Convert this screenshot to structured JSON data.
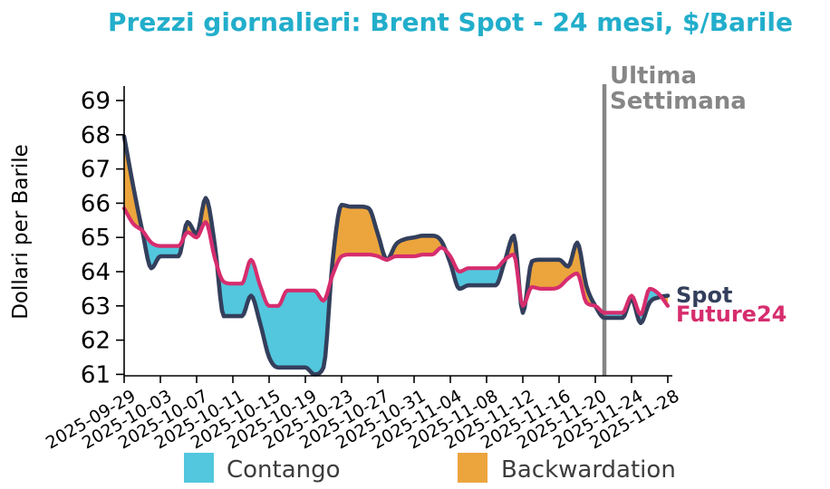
{
  "title": "Prezzi giornalieri: Brent Spot - 24 mesi, $/Barile",
  "ylabel": "Dollari per Barile",
  "annotation": {
    "line1": "Ultima",
    "line2": "Settimana"
  },
  "series_end_labels": {
    "spot": "Spot",
    "future": "Future24"
  },
  "legend": [
    {
      "label": "Contango",
      "color": "#52C7DE"
    },
    {
      "label": "Backwardation",
      "color": "#ECA53D"
    }
  ],
  "colors": {
    "title": "#22AECB",
    "spot": "#333F5C",
    "future": "#D62D6E",
    "contango": "#52C7DE",
    "backwardation": "#ECA53D",
    "annotation": "#868686",
    "vline": "#868686",
    "axis": "#000000",
    "legend_text": "#3D3D3D"
  },
  "chart_data": {
    "type": "line",
    "title": "Prezzi giornalieri: Brent Spot - 24 mesi, $/Barile",
    "xlabel": "",
    "ylabel": "Dollari per Barile",
    "ylim": [
      60.9,
      69.45
    ],
    "yticks": [
      61,
      62,
      63,
      64,
      65,
      66,
      67,
      68,
      69
    ],
    "xtick_labels": [
      "2025-09-29",
      "2025-10-03",
      "2025-10-07",
      "2025-10-11",
      "2025-10-15",
      "2025-10-19",
      "2025-10-23",
      "2025-10-27",
      "2025-10-31",
      "2025-11-04",
      "2025-11-08",
      "2025-11-12",
      "2025-11-16",
      "2025-11-20",
      "2025-11-24",
      "2025-11-28"
    ],
    "x_dates": [
      "2025-09-29",
      "2025-09-30",
      "2025-10-01",
      "2025-10-02",
      "2025-10-03",
      "2025-10-04",
      "2025-10-05",
      "2025-10-06",
      "2025-10-07",
      "2025-10-08",
      "2025-10-09",
      "2025-10-10",
      "2025-10-11",
      "2025-10-12",
      "2025-10-13",
      "2025-10-14",
      "2025-10-15",
      "2025-10-16",
      "2025-10-17",
      "2025-10-18",
      "2025-10-19",
      "2025-10-20",
      "2025-10-21",
      "2025-10-22",
      "2025-10-23",
      "2025-10-24",
      "2025-10-25",
      "2025-10-26",
      "2025-10-27",
      "2025-10-28",
      "2025-10-29",
      "2025-10-30",
      "2025-10-31",
      "2025-11-01",
      "2025-11-02",
      "2025-11-03",
      "2025-11-04",
      "2025-11-05",
      "2025-11-06",
      "2025-11-07",
      "2025-11-08",
      "2025-11-09",
      "2025-11-10",
      "2025-11-11",
      "2025-11-12",
      "2025-11-13",
      "2025-11-14",
      "2025-11-15",
      "2025-11-16",
      "2025-11-17",
      "2025-11-18",
      "2025-11-19",
      "2025-11-20",
      "2025-11-21",
      "2025-11-22",
      "2025-11-23",
      "2025-11-24",
      "2025-11-25",
      "2025-11-26",
      "2025-11-27",
      "2025-11-28"
    ],
    "series": [
      {
        "name": "Spot",
        "color": "#333F5C",
        "values": [
          67.95,
          66.5,
          65.2,
          64.1,
          64.45,
          64.45,
          64.45,
          65.45,
          65.1,
          66.15,
          64.8,
          62.7,
          62.7,
          62.7,
          63.3,
          62.5,
          61.5,
          61.2,
          61.2,
          61.2,
          61.2,
          61.0,
          61.2,
          64.3,
          65.95,
          65.9,
          65.9,
          65.85,
          65.1,
          64.35,
          64.8,
          64.95,
          65.0,
          65.05,
          65.05,
          64.9,
          64.25,
          63.5,
          63.6,
          63.6,
          63.6,
          63.6,
          64.3,
          65.05,
          62.8,
          64.3,
          64.35,
          64.35,
          64.35,
          64.15,
          64.85,
          63.6,
          63.0,
          62.65,
          62.65,
          62.65,
          63.2,
          62.5,
          63.1,
          63.25,
          63.3
        ]
      },
      {
        "name": "Future24",
        "color": "#D62D6E",
        "values": [
          65.85,
          65.4,
          65.2,
          64.85,
          64.75,
          64.75,
          64.75,
          65.15,
          65.0,
          65.45,
          64.4,
          63.7,
          63.65,
          63.65,
          64.35,
          63.6,
          63.0,
          63.0,
          63.45,
          63.45,
          63.45,
          63.45,
          63.15,
          63.9,
          64.45,
          64.5,
          64.5,
          64.5,
          64.45,
          64.35,
          64.45,
          64.45,
          64.45,
          64.5,
          64.5,
          64.7,
          64.45,
          64.0,
          64.1,
          64.1,
          64.1,
          64.1,
          64.35,
          64.5,
          63.0,
          63.55,
          63.5,
          63.5,
          63.55,
          63.8,
          63.95,
          63.1,
          63.0,
          62.8,
          62.8,
          62.8,
          63.3,
          62.75,
          63.5,
          63.35,
          63.0
        ]
      }
    ],
    "fills": [
      {
        "name": "Contango",
        "rule": "Future24 > Spot",
        "color": "#52C7DE"
      },
      {
        "name": "Backwardation",
        "rule": "Spot > Future24",
        "color": "#ECA53D"
      }
    ],
    "vline": {
      "date": "2025-11-21",
      "label": "Ultima Settimana",
      "color": "#868686"
    },
    "legend_position": "bottom",
    "grid": false
  }
}
